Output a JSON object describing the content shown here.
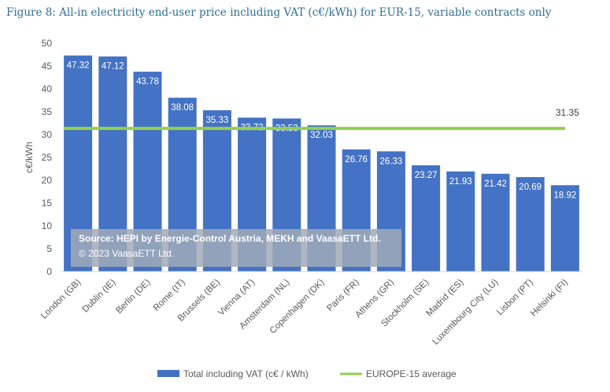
{
  "figure": {
    "title": "Figure 8: All-in electricity end-user price including VAT (c€/kWh) for EUR-15, variable contracts only"
  },
  "source_note": {
    "line1": "Source: HEPI by Energie-Control Austria, MEKH and VaasaETT Ltd.",
    "line2": "© 2023 VaasaETT Ltd."
  },
  "colors": {
    "bar": "#4472c4",
    "average_line": "#92d050"
  },
  "chart_data": {
    "type": "bar",
    "ylabel": "c€/kWh",
    "xlabel": "",
    "ylim": [
      0,
      50
    ],
    "yticks": [
      0,
      5,
      10,
      15,
      20,
      25,
      30,
      35,
      40,
      45,
      50
    ],
    "grid": false,
    "legend_position": "bottom",
    "categories": [
      "London (GB)",
      "Dublin (IE)",
      "Berlin (DE)",
      "Rome (IT)",
      "Brussels (BE)",
      "Vienna (AT)",
      "Amsterdam (NL)",
      "Copenhagen (DK)",
      "Paris (FR)",
      "Athens (GR)",
      "Stockholm (SE)",
      "Madrid (ES)",
      "Luxembourg City (LU)",
      "Lisbon (PT)",
      "Helsinki (FI)"
    ],
    "series": [
      {
        "name": "Total including VAT (c€ / kWh)",
        "values": [
          47.32,
          47.12,
          43.78,
          38.08,
          35.33,
          33.72,
          33.53,
          32.03,
          26.76,
          26.33,
          23.27,
          21.93,
          21.42,
          20.69,
          18.92
        ]
      }
    ],
    "reference_line": {
      "name": "EUROPE-15 average",
      "value": 31.35,
      "label": "31.35"
    }
  }
}
